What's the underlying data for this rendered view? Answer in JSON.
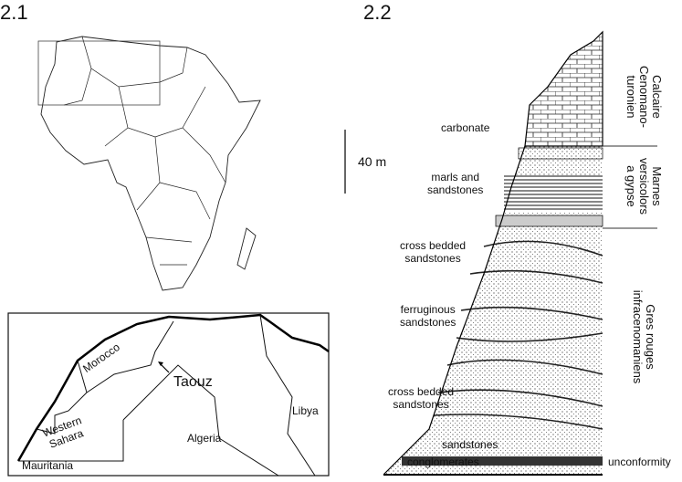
{
  "panels": {
    "left": "2.1",
    "right": "2.2"
  },
  "inset": {
    "morocco": "Morocco",
    "taouz": "Taouz",
    "western_sahara": "Western\nSahara",
    "algeria": "Algeria",
    "libya": "Libya",
    "mauritania": "Mauritania"
  },
  "scale": "40 m",
  "lithology": [
    "carbonate",
    "marls and\nsandstones",
    "cross bedded\nsandstones",
    "ferruginous\nsandstones",
    "cross bedded\nsandstones",
    "sandstones",
    "conglomerates"
  ],
  "unconformity": "unconformity",
  "formations": [
    "Calcaire\nCenomano-\nturonien",
    "Marnes\nversicolors\na gypse",
    "Gres rouges\ninfracenomaniens"
  ]
}
